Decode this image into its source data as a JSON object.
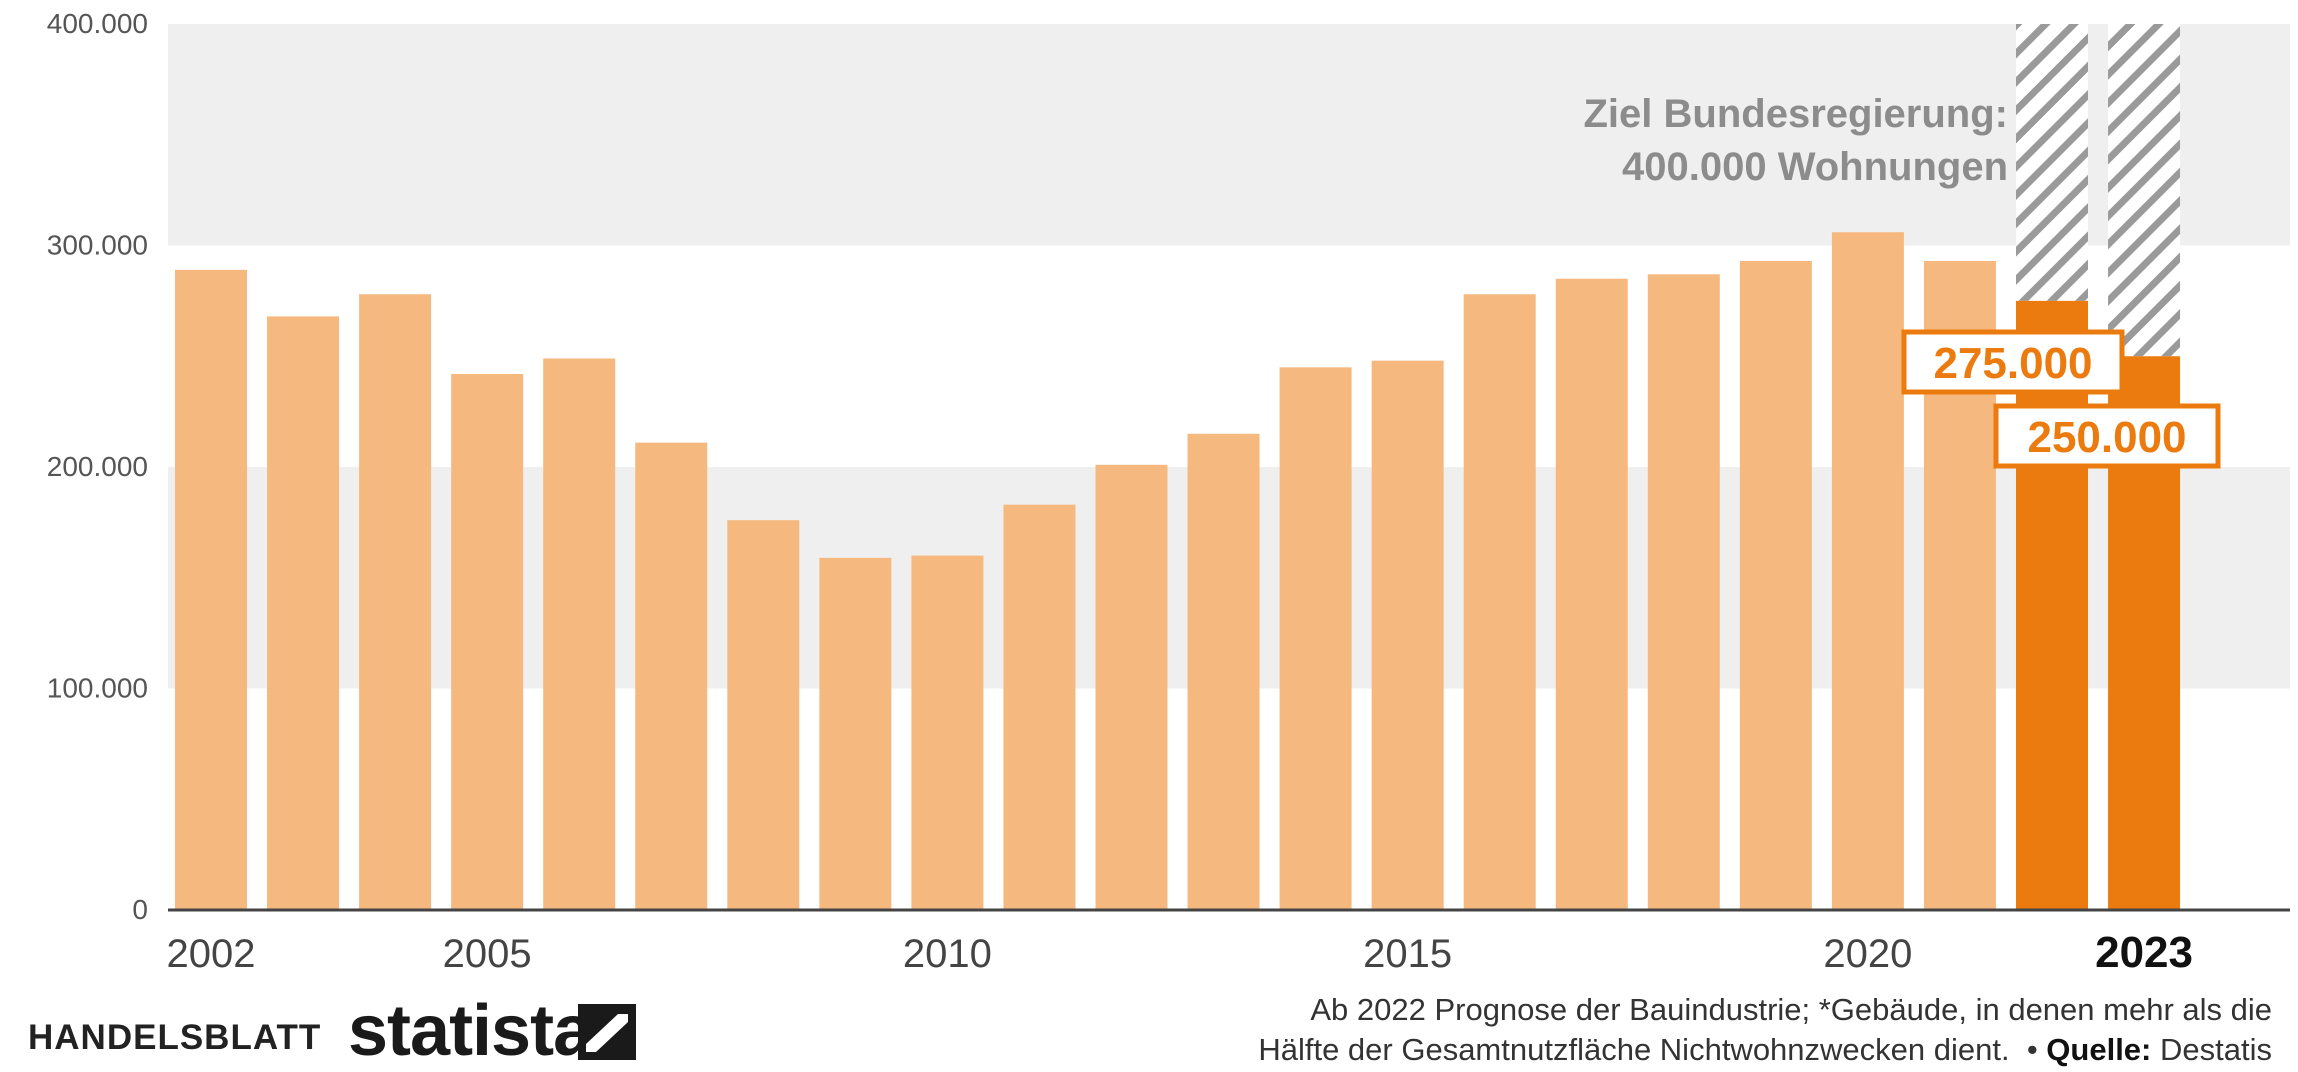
{
  "chart_data": {
    "type": "bar",
    "categories": [
      "2002",
      "2003",
      "2004",
      "2005",
      "2006",
      "2007",
      "2008",
      "2009",
      "2010",
      "2011",
      "2012",
      "2013",
      "2014",
      "2015",
      "2016",
      "2017",
      "2018",
      "2019",
      "2020",
      "2021",
      "2022",
      "2023"
    ],
    "values": [
      289000,
      268000,
      278000,
      242000,
      249000,
      211000,
      176000,
      159000,
      160000,
      183000,
      201000,
      215000,
      245000,
      248000,
      278000,
      285000,
      287000,
      293000,
      306000,
      293000,
      275000,
      250000
    ],
    "forecast_from": "2022",
    "target_value": 400000,
    "x_tick_labels": [
      "2002",
      "2005",
      "2010",
      "2015",
      "2020",
      "2023"
    ],
    "y_ticks": [
      0,
      100000,
      200000,
      300000,
      400000
    ],
    "y_tick_labels": [
      "0",
      "100.000",
      "200.000",
      "300.000",
      "400.000"
    ],
    "ylim": [
      0,
      400000
    ],
    "annotation_line1": "Ziel Bundesregierung:",
    "annotation_line2": "400.000 Wohnungen",
    "value_label_2022": "275.000",
    "value_label_2023": "250.000",
    "colors": {
      "historical": "#F5B97F",
      "forecast": "#EC7B0F",
      "target_hatch": "#9A9A9A",
      "band": "#EFEFEF",
      "annotation_text": "#8C8C8C",
      "tick_text": "#555555"
    }
  },
  "footer": {
    "brand_left": "HANDELSBLATT",
    "brand_right": "statista",
    "note_line1": "Ab 2022 Prognose der Bauindustrie; *Gebäude, in denen mehr als die",
    "note_line2": "Hälfte der Gesamtnutzfläche Nichtwohnzwecken dient.",
    "source_label": "Quelle:",
    "source_name": "Destatis"
  }
}
